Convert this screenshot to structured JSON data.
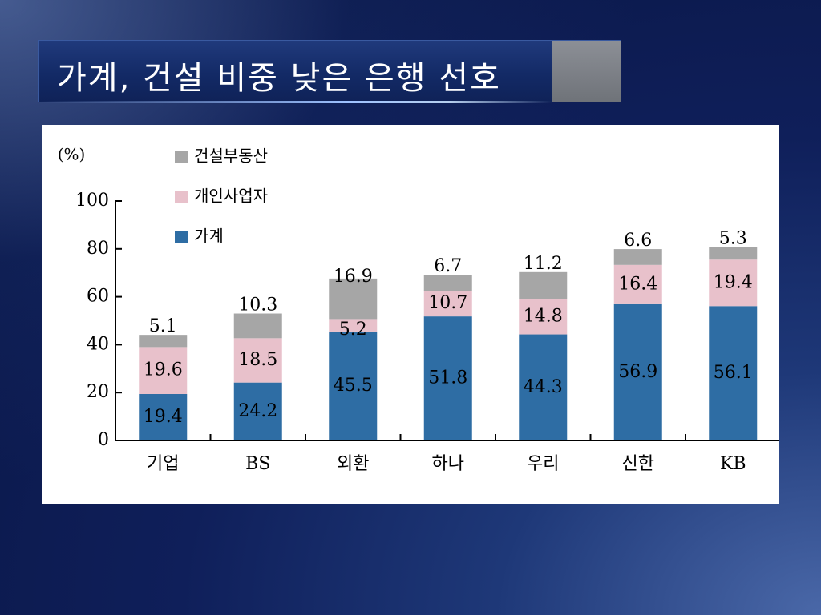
{
  "slide": {
    "title": "가계, 건설 비중 낮은 은행 선호"
  },
  "colors": {
    "household": "#2e6da4",
    "sole_proprietor": "#e8c1cb",
    "construction": "#a6a6a6"
  },
  "chart_data": {
    "type": "bar",
    "stacked": true,
    "title": "",
    "xlabel": "",
    "ylabel": "(%)",
    "ylim": [
      0,
      100
    ],
    "yticks": [
      0,
      20,
      40,
      60,
      80,
      100
    ],
    "legend_position": "top-left",
    "categories": [
      "기업",
      "BS",
      "외환",
      "하나",
      "우리",
      "신한",
      "KB"
    ],
    "series": [
      {
        "name": "가계",
        "color": "#2e6da4",
        "values": [
          19.4,
          24.2,
          45.5,
          51.8,
          44.3,
          56.9,
          56.1
        ]
      },
      {
        "name": "개인사업자",
        "color": "#e8c1cb",
        "values": [
          19.6,
          18.5,
          5.2,
          10.7,
          14.8,
          16.4,
          19.4
        ]
      },
      {
        "name": "건설부동산",
        "color": "#a6a6a6",
        "values": [
          5.1,
          10.3,
          16.9,
          6.7,
          11.2,
          6.6,
          5.3
        ]
      }
    ],
    "legend_order": [
      "건설부동산",
      "개인사업자",
      "가계"
    ]
  }
}
